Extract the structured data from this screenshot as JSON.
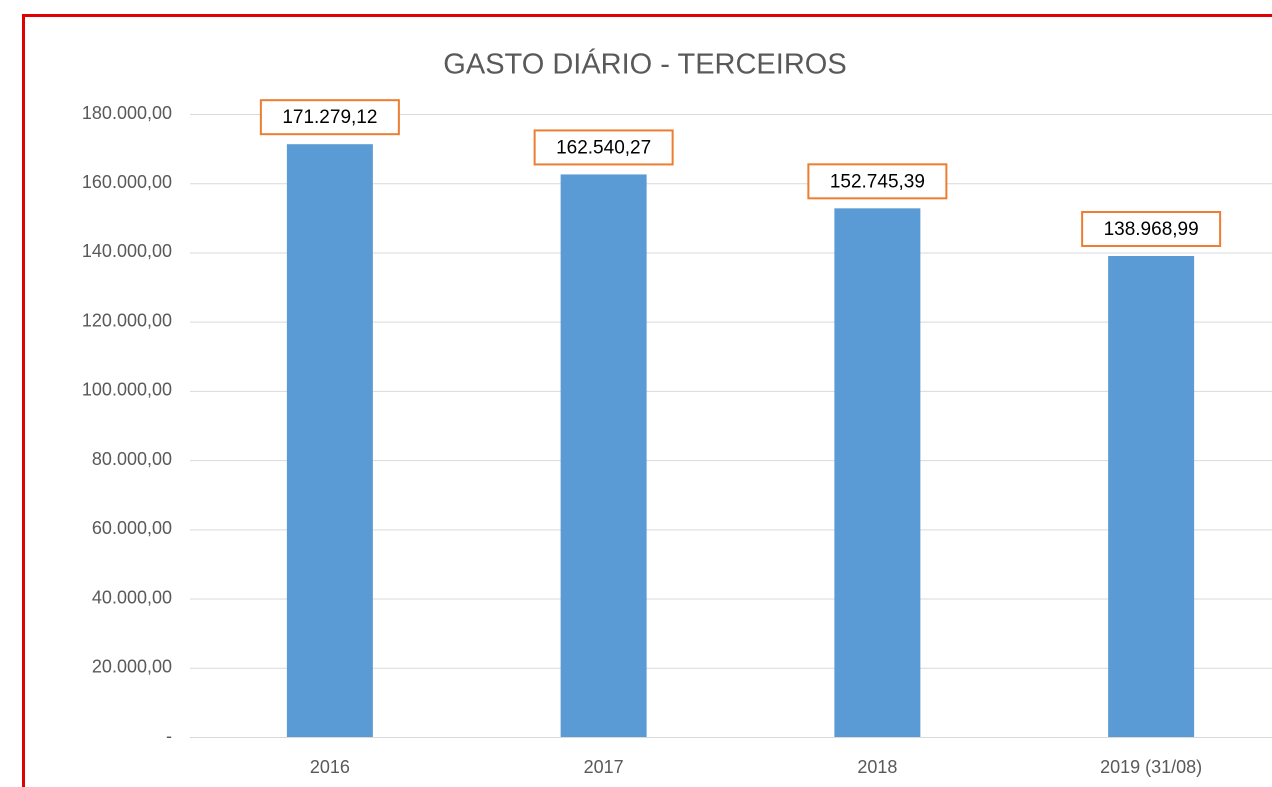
{
  "chart_data": {
    "type": "bar",
    "title": "GASTO DIÁRIO - TERCEIROS",
    "categories": [
      "2016",
      "2017",
      "2018",
      "2019 (31/08)"
    ],
    "values": [
      171279.12,
      162540.27,
      152745.39,
      138968.99
    ],
    "value_labels": [
      "171.279,12",
      "162.540,27",
      "152.745,39",
      "138.968,99"
    ],
    "color": "#5b9bd5",
    "ylim": [
      0,
      180000
    ],
    "yticks": [
      {
        "value": 0,
        "label": "-"
      },
      {
        "value": 20000,
        "label": "20.000,00"
      },
      {
        "value": 40000,
        "label": "40.000,00"
      },
      {
        "value": 60000,
        "label": "60.000,00"
      },
      {
        "value": 80000,
        "label": "80.000,00"
      },
      {
        "value": 100000,
        "label": "100.000,00"
      },
      {
        "value": 120000,
        "label": "120.000,00"
      },
      {
        "value": 140000,
        "label": "140.000,00"
      },
      {
        "value": 160000,
        "label": "160.000,00"
      },
      {
        "value": 180000,
        "label": "180.000,00"
      }
    ],
    "grid": true
  }
}
